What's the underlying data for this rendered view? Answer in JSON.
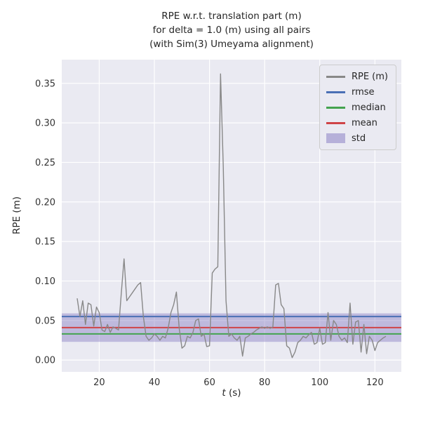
{
  "figure": {
    "title_lines": [
      "RPE w.r.t. translation part (m)",
      "for delta = 1.0 (m) using all pairs",
      "(with Sim(3) Umeyama alignment)"
    ],
    "xlabel_var": "t",
    "xlabel_unit": "(s)",
    "ylabel": "RPE (m)"
  },
  "legend": {
    "entries": [
      {
        "label": "RPE (m)",
        "type": "line",
        "color": "#888888"
      },
      {
        "label": "rmse",
        "type": "line",
        "color": "#4a6fb5"
      },
      {
        "label": "median",
        "type": "line",
        "color": "#44a34f"
      },
      {
        "label": "mean",
        "type": "line",
        "color": "#cf4447"
      },
      {
        "label": "std",
        "type": "band",
        "color": "#8a7fc4"
      }
    ]
  },
  "colors": {
    "plot_bg": "#eaeaf2",
    "grid": "#ffffff",
    "rpe": "#888888",
    "rmse": "#4a6fb5",
    "median": "#44a34f",
    "mean": "#cf4447",
    "std": "#8a7fc4"
  },
  "chart_data": {
    "type": "line",
    "title": "RPE w.r.t. translation part (m) for delta = 1.0 (m) using all pairs (with Sim(3) Umeyama alignment)",
    "xlabel": "t (s)",
    "ylabel": "RPE (m)",
    "xlim": [
      6.4,
      129.6
    ],
    "ylim": [
      -0.015,
      0.38
    ],
    "xticks": [
      20,
      40,
      60,
      80,
      100,
      120
    ],
    "yticks": [
      0.0,
      0.05,
      0.1,
      0.15,
      0.2,
      0.25,
      0.3,
      0.35
    ],
    "grid": true,
    "legend_position": "upper right",
    "stats": {
      "rmse": 0.055,
      "mean": 0.041,
      "median": 0.033,
      "std": 0.018
    },
    "std_band": [
      0.023,
      0.059
    ],
    "series": [
      {
        "name": "RPE (m)",
        "x": [
          12,
          13,
          14,
          15,
          16,
          17,
          18,
          19,
          20,
          21,
          22,
          23,
          24,
          25,
          26,
          27,
          28,
          29,
          30,
          31,
          32,
          33,
          34,
          35,
          36,
          37,
          38,
          39,
          40,
          41,
          42,
          43,
          44,
          45,
          46,
          47,
          48,
          49,
          50,
          51,
          52,
          53,
          54,
          55,
          56,
          57,
          58,
          59,
          60,
          61,
          62,
          63,
          64,
          65,
          66,
          67,
          68,
          69,
          70,
          71,
          72,
          73,
          74,
          75,
          76,
          77,
          78,
          79,
          80,
          81,
          82,
          83,
          84,
          85,
          86,
          87,
          88,
          89,
          90,
          91,
          92,
          93,
          94,
          95,
          96,
          97,
          98,
          99,
          100,
          101,
          102,
          103,
          104,
          105,
          106,
          107,
          108,
          109,
          110,
          111,
          112,
          113,
          114,
          115,
          116,
          117,
          118,
          119,
          120,
          121,
          122,
          123,
          124
        ],
        "y": [
          0.078,
          0.055,
          0.075,
          0.045,
          0.072,
          0.07,
          0.043,
          0.067,
          0.06,
          0.038,
          0.036,
          0.045,
          0.035,
          0.042,
          0.04,
          0.038,
          0.085,
          0.128,
          0.075,
          0.08,
          0.085,
          0.09,
          0.095,
          0.098,
          0.055,
          0.03,
          0.025,
          0.028,
          0.033,
          0.03,
          0.025,
          0.03,
          0.028,
          0.04,
          0.06,
          0.07,
          0.086,
          0.04,
          0.015,
          0.018,
          0.03,
          0.028,
          0.035,
          0.05,
          0.052,
          0.03,
          0.033,
          0.017,
          0.018,
          0.11,
          0.115,
          0.118,
          0.362,
          0.245,
          0.075,
          0.03,
          0.033,
          0.028,
          0.025,
          0.03,
          0.005,
          0.028,
          0.03,
          0.033,
          0.035,
          0.038,
          0.04,
          0.042,
          0.04,
          0.042,
          0.04,
          0.042,
          0.095,
          0.097,
          0.07,
          0.065,
          0.018,
          0.015,
          0.003,
          0.01,
          0.022,
          0.025,
          0.03,
          0.028,
          0.032,
          0.035,
          0.02,
          0.022,
          0.04,
          0.02,
          0.022,
          0.06,
          0.025,
          0.05,
          0.045,
          0.03,
          0.025,
          0.028,
          0.022,
          0.072,
          0.02,
          0.048,
          0.05,
          0.01,
          0.045,
          0.008,
          0.03,
          0.025,
          0.012,
          0.022,
          0.025,
          0.028,
          0.03
        ]
      }
    ]
  }
}
